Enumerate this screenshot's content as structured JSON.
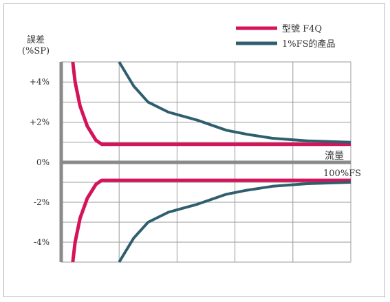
{
  "chart_data": {
    "type": "line",
    "ylabel_line1": "誤差",
    "ylabel_line2": "(%SP)",
    "ylim": [
      -5,
      5
    ],
    "y_ticks": [
      {
        "value": 4,
        "label": "+4%"
      },
      {
        "value": 2,
        "label": "+2%"
      },
      {
        "value": 0,
        "label": "0%"
      },
      {
        "value": -2,
        "label": "-2%"
      },
      {
        "value": -4,
        "label": "-4%"
      }
    ],
    "xlim": [
      0,
      100
    ],
    "x_gridlines": [
      20,
      40,
      60,
      80,
      100
    ],
    "x_axis_label": "流量",
    "x_end_label": "100%FS",
    "legend_position": "top-right",
    "series": [
      {
        "name": "型號 F4Q",
        "color": "#d4145a",
        "upper": [
          [
            4.0,
            5.0
          ],
          [
            4.8,
            4.0
          ],
          [
            6.5,
            2.8
          ],
          [
            9,
            1.8
          ],
          [
            12,
            1.1
          ],
          [
            14,
            0.9
          ],
          [
            20,
            0.9
          ],
          [
            100,
            0.9
          ]
        ],
        "lower": [
          [
            4.0,
            -5.0
          ],
          [
            4.8,
            -4.0
          ],
          [
            6.5,
            -2.8
          ],
          [
            9,
            -1.8
          ],
          [
            12,
            -1.1
          ],
          [
            14,
            -0.9
          ],
          [
            20,
            -0.9
          ],
          [
            100,
            -0.9
          ]
        ]
      },
      {
        "name": "1%FS的產品",
        "color": "#2f5f6e",
        "upper": [
          [
            20,
            5.0
          ],
          [
            25,
            3.8
          ],
          [
            30,
            3.0
          ],
          [
            37,
            2.5
          ],
          [
            47,
            2.1
          ],
          [
            57,
            1.6
          ],
          [
            64,
            1.4
          ],
          [
            73,
            1.2
          ],
          [
            85,
            1.07
          ],
          [
            100,
            1.0
          ]
        ],
        "lower": [
          [
            20,
            -5.0
          ],
          [
            25,
            -3.8
          ],
          [
            30,
            -3.0
          ],
          [
            37,
            -2.5
          ],
          [
            47,
            -2.1
          ],
          [
            57,
            -1.6
          ],
          [
            64,
            -1.4
          ],
          [
            73,
            -1.2
          ],
          [
            85,
            -1.07
          ],
          [
            100,
            -1.0
          ]
        ]
      }
    ]
  }
}
